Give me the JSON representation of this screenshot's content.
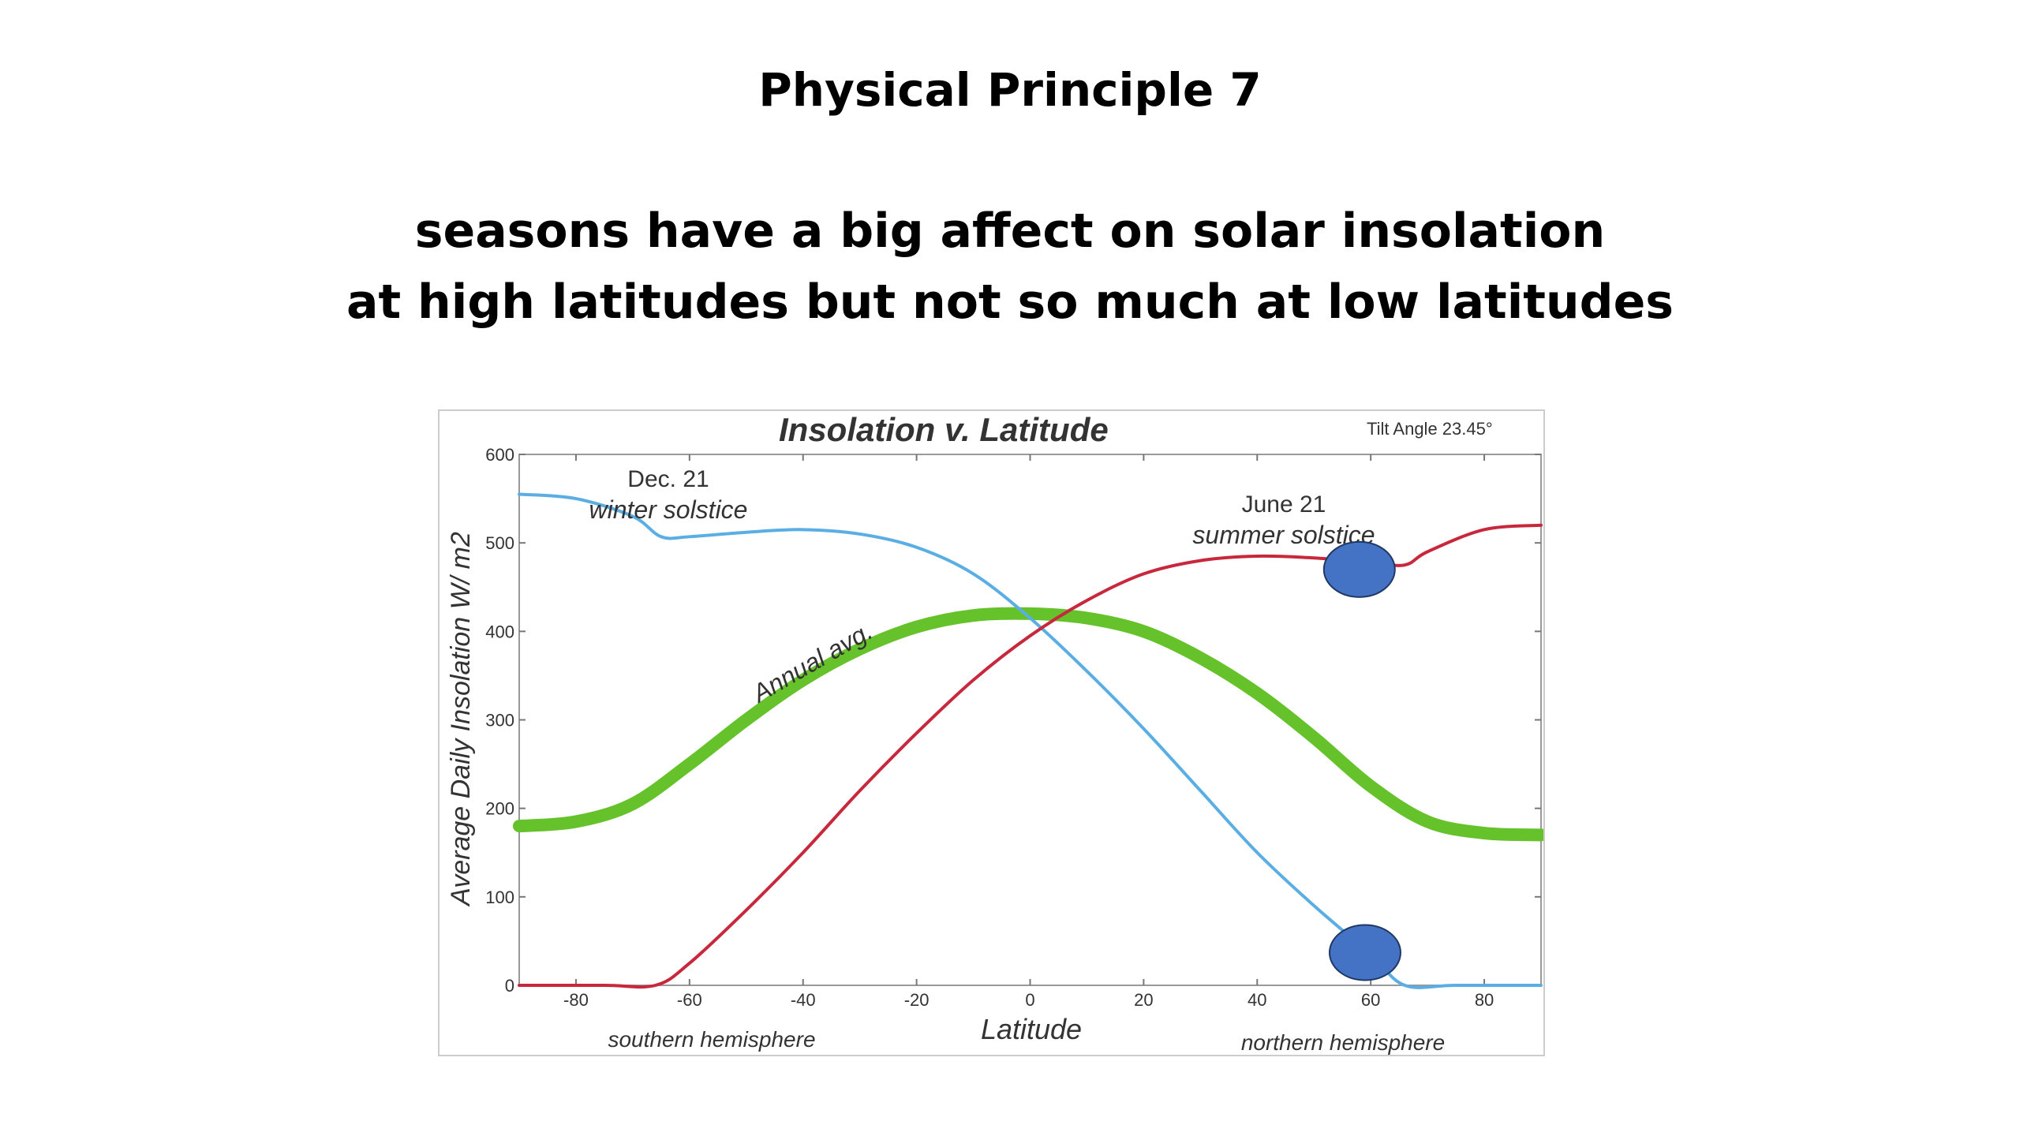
{
  "slide": {
    "title": "Physical Principle 7",
    "line1": "seasons have a big affect on solar insolation",
    "line2": "at high latitudes but not so much at low latitudes"
  },
  "chart_data": {
    "type": "line",
    "title": "Insolation v. Latitude",
    "subtitle": "Tilt Angle 23.45°",
    "xlabel": "Latitude",
    "ylabel": "Average Daily Insolation W/ m2",
    "xlim": [
      -90,
      90
    ],
    "ylim": [
      0,
      600
    ],
    "xticks": [
      -80,
      -60,
      -40,
      -20,
      0,
      20,
      40,
      60,
      80
    ],
    "yticks": [
      0,
      100,
      200,
      300,
      400,
      500,
      600
    ],
    "hemisphere_labels": {
      "south": "southern hemisphere",
      "north": "northern hemisphere"
    },
    "series": [
      {
        "name": "Dec. 21 winter solstice",
        "label_top": "Dec. 21",
        "label_bottom": "winter solstice",
        "color": "#5aaee3",
        "x": [
          -90,
          -80,
          -70,
          -65,
          -60,
          -50,
          -40,
          -30,
          -20,
          -10,
          0,
          10,
          20,
          30,
          40,
          50,
          60,
          66,
          75,
          90
        ],
        "y": [
          555,
          550,
          530,
          507,
          507,
          512,
          515,
          510,
          495,
          465,
          415,
          355,
          290,
          220,
          150,
          90,
          35,
          0,
          0,
          0
        ]
      },
      {
        "name": "June 21 summer solstice",
        "label_top": "June 21",
        "label_bottom": "summer solstice",
        "color": "#c8283c",
        "x": [
          -90,
          -75,
          -66,
          -60,
          -50,
          -40,
          -30,
          -20,
          -10,
          0,
          10,
          20,
          30,
          40,
          50,
          60,
          66,
          70,
          80,
          90
        ],
        "y": [
          0,
          0,
          0,
          25,
          85,
          150,
          220,
          285,
          345,
          395,
          435,
          465,
          480,
          485,
          483,
          478,
          475,
          490,
          515,
          520
        ]
      },
      {
        "name": "Annual avg.",
        "label": "Annual avg.",
        "color": "#66c22a",
        "x": [
          -90,
          -80,
          -70,
          -60,
          -50,
          -40,
          -30,
          -20,
          -10,
          0,
          10,
          20,
          30,
          40,
          50,
          60,
          70,
          80,
          90
        ],
        "y": [
          180,
          185,
          205,
          250,
          300,
          345,
          380,
          405,
          418,
          420,
          415,
          400,
          370,
          330,
          280,
          225,
          185,
          172,
          170
        ]
      }
    ],
    "markers": [
      {
        "x": 58,
        "y": 470,
        "color": "#4472c4"
      },
      {
        "x": 59,
        "y": 37,
        "color": "#4472c4"
      }
    ]
  }
}
